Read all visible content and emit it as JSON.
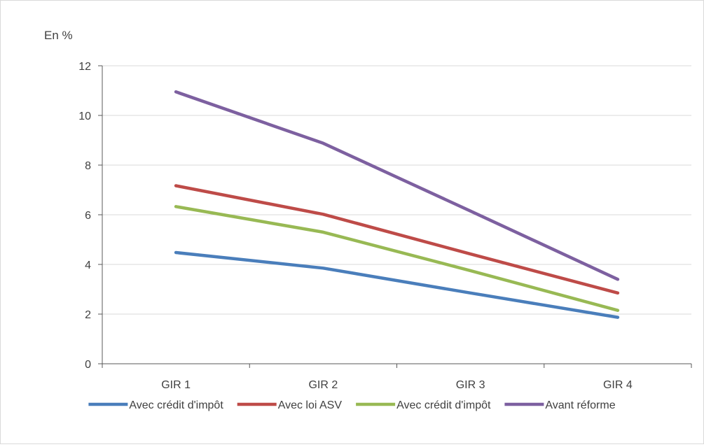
{
  "chart_data": {
    "type": "line",
    "unit_label": "En %",
    "categories": [
      "GIR 1",
      "GIR 2",
      "GIR 3",
      "GIR 4"
    ],
    "ylim": [
      0,
      12
    ],
    "yticks": [
      "0",
      "2",
      "4",
      "6",
      "8",
      "10",
      "12"
    ],
    "grid": true,
    "legend_position": "bottom",
    "series": [
      {
        "name": "Avec crédit d'impôt",
        "color": "#4a7ebb",
        "values": [
          4.48,
          3.85,
          2.85,
          1.87
        ]
      },
      {
        "name": "Avec loi ASV",
        "color": "#be4b48",
        "values": [
          7.17,
          6.02,
          4.42,
          2.85
        ]
      },
      {
        "name": "Avec crédit d'impôt",
        "color": "#98b954",
        "values": [
          6.33,
          5.3,
          3.75,
          2.15
        ]
      },
      {
        "name": "Avant réforme",
        "color": "#7d60a0",
        "values": [
          10.95,
          8.88,
          6.15,
          3.4
        ]
      }
    ]
  }
}
